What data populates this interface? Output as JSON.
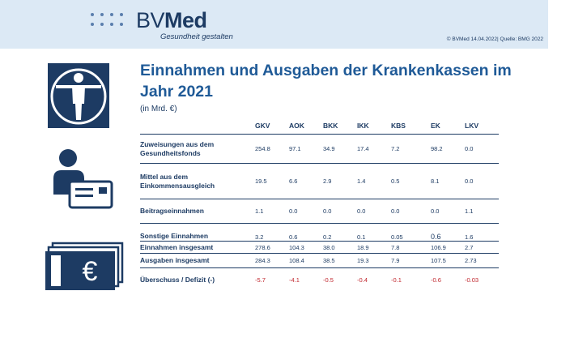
{
  "header": {
    "logo_prefix": "BV",
    "logo_suffix": "Med",
    "logo_tagline": "Gesundheit gestalten",
    "source": "© BVMed 14.04.2022| Quelle: BMG 2022"
  },
  "title": "Einnahmen und Ausgaben der Krankenkassen im Jahr 2021",
  "unit": "(in Mrd. €)",
  "colors": {
    "brand": "#1d3b63",
    "title": "#1f5a97",
    "header_bg": "#dce9f5",
    "deficit": "#c0262d"
  },
  "icons": [
    "vitruvian-man-icon",
    "insured-person-card-icon",
    "euro-banknotes-icon"
  ],
  "table": {
    "columns": [
      "GKV",
      "AOK",
      "BKK",
      "IKK",
      "KBS",
      "EK",
      "LKV"
    ],
    "rows": [
      {
        "label": "Zuweisungen aus dem Gesundheitsfonds",
        "values": [
          "254.8",
          "97.1",
          "34.9",
          "17.4",
          "7.2",
          "98.2",
          "0.0"
        ]
      },
      {
        "label": "Mittel aus dem Einkommensausgleich",
        "values": [
          "19.5",
          "6.6",
          "2.9",
          "1.4",
          "0.5",
          "8.1",
          "0.0"
        ]
      },
      {
        "label": "Beitragseinnahmen",
        "values": [
          "1.1",
          "0.0",
          "0.0",
          "0.0",
          "0.0",
          "0.0",
          "1.1"
        ]
      },
      {
        "label": "Sonstige Einnahmen",
        "values": [
          "3.2",
          "0.6",
          "0.2",
          "0.1",
          "0.05",
          "0.6",
          "1.6"
        ]
      },
      {
        "label": "Einnahmen insgesamt",
        "values": [
          "278.6",
          "104.3",
          "38.0",
          "18.9",
          "7.8",
          "106.9",
          "2.7"
        ]
      },
      {
        "label": "Ausgaben insgesamt",
        "values": [
          "284.3",
          "108.4",
          "38.5",
          "19.3",
          "7.9",
          "107.5",
          "2.73"
        ]
      },
      {
        "label": "Überschuss / Defizit (-)",
        "values": [
          "-5.7",
          "-4.1",
          "-0.5",
          "-0.4",
          "-0.1",
          "-0.6",
          "-0.03"
        ]
      }
    ]
  }
}
